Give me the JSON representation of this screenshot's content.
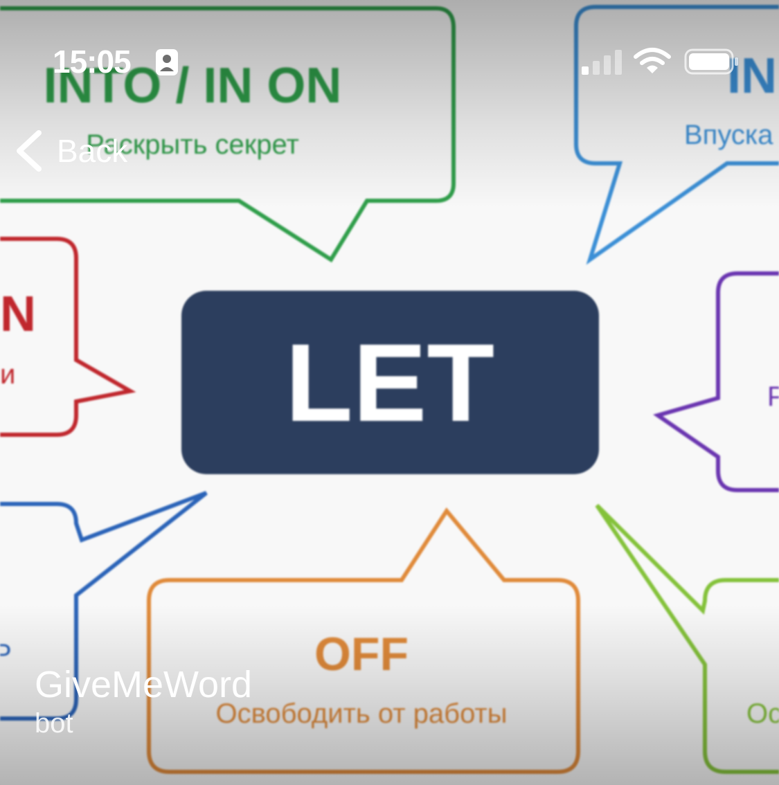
{
  "status_bar": {
    "time": "15:05",
    "icons": [
      "person-lock-icon",
      "cellular-signal-icon",
      "wifi-icon",
      "battery-icon"
    ]
  },
  "nav": {
    "back_label": "Back",
    "icon": "chevron-left-icon"
  },
  "profile": {
    "name": "GiveMeWord",
    "subtitle": "bot"
  },
  "photo": {
    "center_word": "LET",
    "center_color": "#2c3e5e",
    "bubbles": [
      {
        "title": "INTO / IN ON",
        "text": "Раскрыть секрет",
        "color": "#2f9e4a"
      },
      {
        "title": "IN",
        "text": "Впуска",
        "color": "#3b8fd6"
      },
      {
        "title": "N",
        "text": "и",
        "color": "#c0272d"
      },
      {
        "title": "",
        "text": "Р",
        "color": "#6a35b0"
      },
      {
        "title": "",
        "text": "Р",
        "color": "#2a63b8"
      },
      {
        "title": "OFF",
        "text": "Освободить от работы",
        "color": "#e08a3a"
      },
      {
        "title": "",
        "text": "Ос",
        "color": "#84c23a"
      }
    ]
  }
}
